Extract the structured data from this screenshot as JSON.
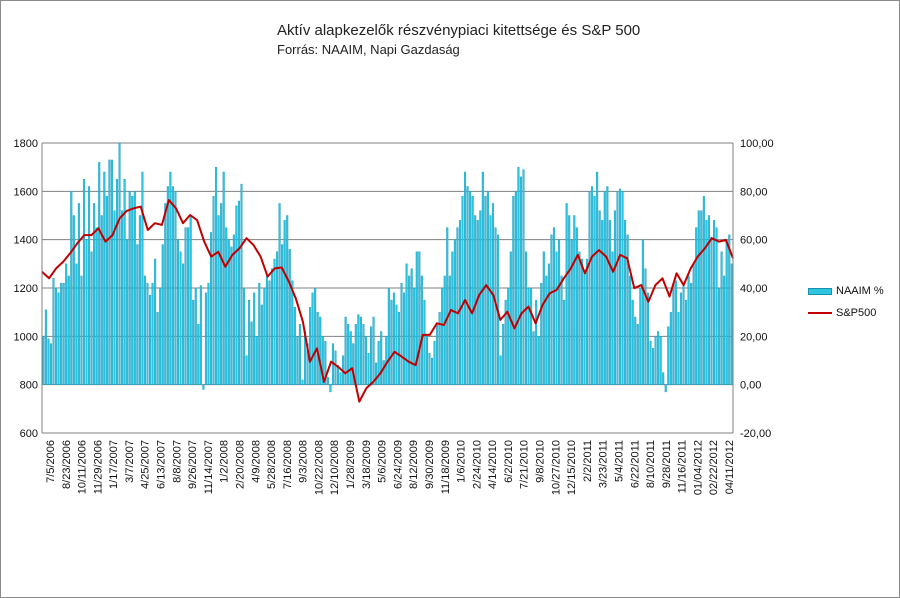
{
  "chart_data": {
    "type": "bar+line",
    "title": "Aktív alapkezelők részvénypiaci kitettsége és S&P 500",
    "subtitle": "Forrás: NAAIM, Napi Gazdaság",
    "left_axis": {
      "min": 600,
      "max": 1800,
      "ticks": [
        "1800",
        "1600",
        "1400",
        "1200",
        "1000",
        "800",
        "600"
      ]
    },
    "right_axis": {
      "min": -20,
      "max": 100,
      "ticks": [
        "100,00",
        "80,00",
        "60,00",
        "40,00",
        "20,00",
        "0,00",
        "-20,00"
      ]
    },
    "grid": true,
    "legend_position": "right",
    "x_labels": [
      "7/5/2006",
      "8/23/2006",
      "10/11/2006",
      "11/29/2006",
      "1/17/2007",
      "3/7/2007",
      "4/25/2007",
      "6/13/2007",
      "8/8/2007",
      "9/26/2007",
      "11/14/2007",
      "1/2/2008",
      "2/20/2008",
      "4/9/2008",
      "5/28/2008",
      "7/16/2008",
      "9/3/2008",
      "10/22/2008",
      "12/10/2008",
      "1/28/2009",
      "3/18/2009",
      "5/6/2009",
      "6/24/2009",
      "8/12/2009",
      "9/30/2009",
      "11/18/2009",
      "1/6/2010",
      "2/24/2010",
      "4/14/2010",
      "6/2/2010",
      "7/21/2010",
      "9/8/2010",
      "10/27/2010",
      "12/15/2010",
      "2/2/2011",
      "3/23/2011",
      "5/4/2011",
      "6/22/2011",
      "8/10/2011",
      "9/28/2011",
      "11/16/2011",
      "01/04/2012",
      "02/22/2012",
      "04/11/2012"
    ],
    "series": [
      {
        "name": "NAAIM %",
        "axis": "right",
        "kind": "bar",
        "color": "#2ec5e0",
        "values": [
          20,
          31,
          19,
          17,
          44,
          40,
          38,
          42,
          42,
          50,
          45,
          80,
          70,
          50,
          75,
          45,
          85,
          60,
          82,
          55,
          75,
          65,
          92,
          70,
          88,
          78,
          93,
          93,
          72,
          85,
          100,
          72,
          85,
          60,
          80,
          78,
          80,
          58,
          70,
          88,
          45,
          42,
          37,
          42,
          52,
          30,
          40,
          58,
          75,
          82,
          88,
          82,
          80,
          60,
          55,
          50,
          65,
          65,
          70,
          35,
          40,
          25,
          41,
          -2,
          38,
          42,
          63,
          78,
          90,
          70,
          75,
          88,
          65,
          60,
          57,
          62,
          74,
          76,
          83,
          40,
          12,
          35,
          26,
          38,
          20,
          42,
          33,
          40,
          45,
          43,
          48,
          52,
          55,
          75,
          58,
          68,
          70,
          56,
          43,
          32,
          20,
          25,
          2,
          22,
          17,
          32,
          38,
          40,
          30,
          28,
          20,
          18,
          3,
          -3,
          17,
          14,
          8,
          5,
          12,
          28,
          25,
          22,
          17,
          25,
          29,
          28,
          25,
          20,
          13,
          24,
          28,
          9,
          18,
          22,
          10,
          20,
          40,
          35,
          38,
          33,
          30,
          42,
          38,
          50,
          45,
          48,
          40,
          55,
          55,
          45,
          35,
          20,
          13,
          11,
          18,
          25,
          30,
          40,
          45,
          65,
          45,
          55,
          60,
          65,
          68,
          78,
          88,
          82,
          80,
          78,
          70,
          68,
          72,
          88,
          78,
          80,
          70,
          75,
          65,
          62,
          12,
          25,
          35,
          40,
          55,
          78,
          80,
          90,
          86,
          89,
          55,
          40,
          40,
          22,
          35,
          20,
          42,
          55,
          45,
          50,
          62,
          65,
          55,
          60,
          45,
          35,
          75,
          70,
          60,
          70,
          65,
          55,
          52,
          47,
          52,
          80,
          82,
          78,
          88,
          72,
          68,
          80,
          82,
          68,
          55,
          72,
          80,
          81,
          80,
          68,
          62,
          45,
          35,
          28,
          25,
          40,
          60,
          48,
          38,
          18,
          15,
          20,
          22,
          20,
          5,
          -3,
          24,
          30,
          42,
          43,
          30,
          38,
          42,
          35,
          45,
          42,
          50,
          65,
          72,
          72,
          78,
          68,
          70,
          61,
          68,
          65,
          40,
          55,
          45,
          60,
          62,
          50
        ]
      },
      {
        "name": "S&P500",
        "axis": "left",
        "kind": "line",
        "color": "#c00000",
        "values": [
          1267,
          1240,
          1281,
          1309,
          1344,
          1385,
          1419,
          1419,
          1447,
          1392,
          1419,
          1488,
          1519,
          1530,
          1537,
          1440,
          1468,
          1461,
          1564,
          1530,
          1468,
          1502,
          1481,
          1392,
          1330,
          1350,
          1288,
          1337,
          1364,
          1406,
          1378,
          1330,
          1247,
          1281,
          1285,
          1227,
          1157,
          1060,
          895,
          950,
          812,
          895,
          874,
          847,
          868,
          730,
          785,
          812,
          847,
          895,
          936,
          916,
          895,
          881,
          1006,
          1006,
          1054,
          1047,
          1109,
          1095,
          1150,
          1095,
          1171,
          1212,
          1171,
          1068,
          1102,
          1033,
          1095,
          1123,
          1054,
          1130,
          1178,
          1192,
          1240,
          1281,
          1337,
          1261,
          1330,
          1357,
          1330,
          1267,
          1337,
          1323,
          1199,
          1212,
          1143,
          1212,
          1240,
          1165,
          1261,
          1212,
          1281,
          1330,
          1364,
          1406,
          1392,
          1399,
          1323
        ]
      }
    ]
  }
}
